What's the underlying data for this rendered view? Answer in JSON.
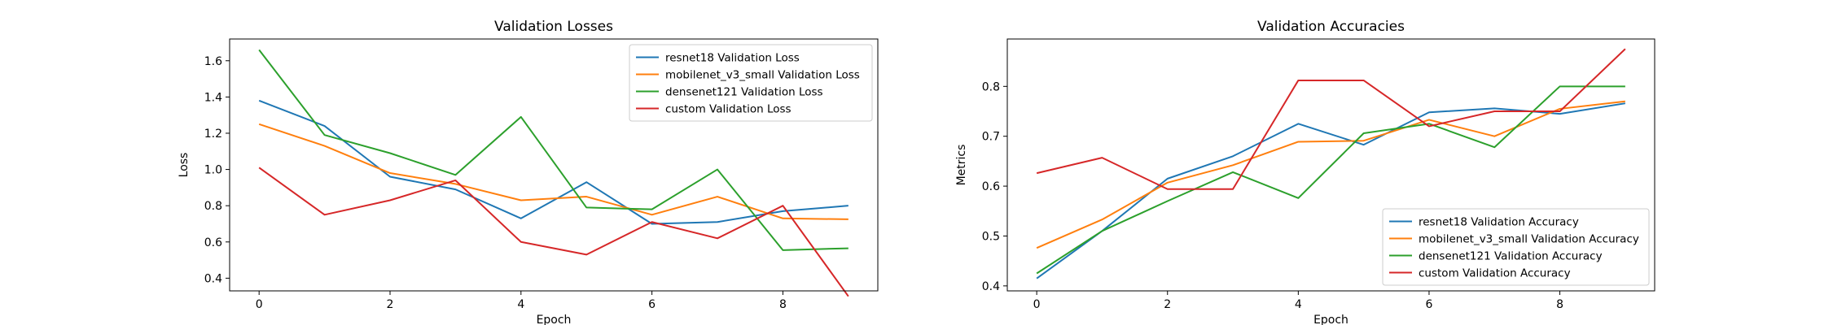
{
  "chart_data": [
    {
      "type": "line",
      "title": "Validation Losses",
      "xlabel": "Epoch",
      "ylabel": "Loss",
      "x": [
        0,
        1,
        2,
        3,
        4,
        5,
        6,
        7,
        8,
        9
      ],
      "xlim": [
        -0.45,
        9.45
      ],
      "ylim": [
        0.33,
        1.72
      ],
      "xticks": [
        "0",
        "2",
        "4",
        "6",
        "8"
      ],
      "xtick_values": [
        0,
        2,
        4,
        6,
        8
      ],
      "yticks": [
        "0.4",
        "0.6",
        "0.8",
        "1.0",
        "1.2",
        "1.4",
        "1.6"
      ],
      "ytick_values": [
        0.4,
        0.6,
        0.8,
        1.0,
        1.2,
        1.4,
        1.6
      ],
      "grid": false,
      "legend_position": "top-right",
      "series": [
        {
          "name": "resnet18 Validation Loss",
          "color": "#1f77b4",
          "values": [
            1.38,
            1.24,
            0.96,
            0.89,
            0.73,
            0.93,
            0.7,
            0.71,
            0.77,
            0.8
          ]
        },
        {
          "name": "mobilenet_v3_small Validation Loss",
          "color": "#ff7f0e",
          "values": [
            1.25,
            1.13,
            0.98,
            0.92,
            0.83,
            0.85,
            0.75,
            0.85,
            0.73,
            0.725
          ]
        },
        {
          "name": "densenet121 Validation Loss",
          "color": "#2ca02c",
          "values": [
            1.66,
            1.19,
            1.09,
            0.97,
            1.29,
            0.79,
            0.78,
            1.0,
            0.555,
            0.565
          ]
        },
        {
          "name": "custom Validation Loss",
          "color": "#d62728",
          "values": [
            1.01,
            0.75,
            0.83,
            0.94,
            0.6,
            0.53,
            0.71,
            0.62,
            0.8,
            0.3
          ]
        }
      ]
    },
    {
      "type": "line",
      "title": "Validation Accuracies",
      "xlabel": "Epoch",
      "ylabel": "Metrics",
      "x": [
        0,
        1,
        2,
        3,
        4,
        5,
        6,
        7,
        8,
        9
      ],
      "xlim": [
        -0.45,
        9.45
      ],
      "ylim": [
        0.39,
        0.895
      ],
      "xticks": [
        "0",
        "2",
        "4",
        "6",
        "8"
      ],
      "xtick_values": [
        0,
        2,
        4,
        6,
        8
      ],
      "yticks": [
        "0.4",
        "0.5",
        "0.6",
        "0.7",
        "0.8"
      ],
      "ytick_values": [
        0.4,
        0.5,
        0.6,
        0.7,
        0.8
      ],
      "grid": false,
      "legend_position": "bottom-right",
      "series": [
        {
          "name": "resnet18 Validation Accuracy",
          "color": "#1f77b4",
          "values": [
            0.415,
            0.51,
            0.615,
            0.66,
            0.725,
            0.683,
            0.748,
            0.756,
            0.745,
            0.766
          ]
        },
        {
          "name": "mobilenet_v3_small Validation Accuracy",
          "color": "#ff7f0e",
          "values": [
            0.476,
            0.533,
            0.607,
            0.642,
            0.689,
            0.691,
            0.733,
            0.7,
            0.755,
            0.77
          ]
        },
        {
          "name": "densenet121 Validation Accuracy",
          "color": "#2ca02c",
          "values": [
            0.425,
            0.51,
            0.57,
            0.628,
            0.576,
            0.706,
            0.725,
            0.678,
            0.8,
            0.8
          ]
        },
        {
          "name": "custom Validation Accuracy",
          "color": "#d62728",
          "values": [
            0.626,
            0.657,
            0.594,
            0.594,
            0.812,
            0.812,
            0.72,
            0.75,
            0.75,
            0.875
          ]
        }
      ]
    }
  ]
}
